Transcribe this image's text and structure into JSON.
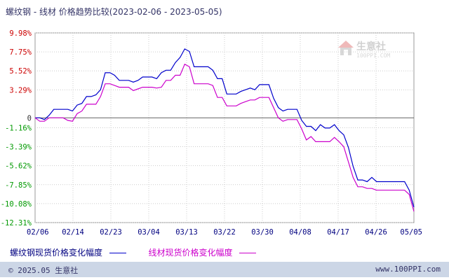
{
  "title": "螺纹钢 - 线材 价格趋势比较(2023-02-06 - 2023-05-05)",
  "watermark": {
    "name": "生意社",
    "url": "100PPI.COM"
  },
  "legend": {
    "series1": "螺纹钢现货价格变化幅度",
    "series2": "线材现货价格变化幅度"
  },
  "footer": {
    "left": "© 2025.05 生意社",
    "right": "www.100PPI.com"
  },
  "colors": {
    "series1": "#0000cc",
    "series2": "#cc00cc",
    "positive_tick": "#cc0000",
    "negative_tick": "#009900",
    "zero_line": "#666666",
    "grid": "#cccccc"
  },
  "chart_data": {
    "type": "line",
    "xticks": [
      "02/06",
      "02/14",
      "02/23",
      "03/04",
      "03/13",
      "03/22",
      "03/30",
      "04/08",
      "04/17",
      "04/26",
      "05/05"
    ],
    "yticks": [
      "9.98%",
      "7.75%",
      "5.52%",
      "3.29%",
      "0",
      "-1.16%",
      "-3.39%",
      "-5.62%",
      "-7.85%",
      "-10.08%",
      "-12.31%"
    ],
    "ylim": [
      -12.31,
      9.98
    ],
    "grid": true,
    "legend_position": "bottom",
    "series": [
      {
        "name": "螺纹钢现货价格变化幅度",
        "values": [
          0,
          0,
          -0.2,
          0.3,
          1.0,
          1.0,
          1.0,
          1.0,
          0.8,
          1.5,
          1.7,
          2.5,
          2.5,
          2.7,
          3.3,
          5.3,
          5.3,
          5.0,
          4.4,
          4.4,
          4.4,
          4.2,
          4.4,
          4.8,
          4.8,
          4.8,
          4.6,
          5.3,
          5.6,
          5.6,
          6.5,
          7.1,
          8.1,
          7.8,
          6.0,
          6.0,
          6.0,
          6.0,
          5.6,
          4.6,
          4.6,
          2.8,
          2.8,
          2.8,
          3.1,
          3.3,
          3.5,
          3.3,
          3.9,
          3.9,
          3.9,
          2.3,
          1.2,
          0.8,
          1.0,
          1.0,
          1.0,
          -0.3,
          -1.0,
          -1.0,
          -1.5,
          -0.8,
          -1.2,
          -1.2,
          -0.8,
          -1.5,
          -2.0,
          -3.5,
          -5.7,
          -7.3,
          -7.3,
          -7.5,
          -7.0,
          -7.5,
          -7.5,
          -7.5,
          -7.5,
          -7.5,
          -7.5,
          -7.5,
          -8.5,
          -10.5
        ]
      },
      {
        "name": "线材现货价格变化幅度",
        "values": [
          0,
          -0.4,
          -0.4,
          0,
          0,
          0,
          0,
          -0.3,
          -0.4,
          0.5,
          0.8,
          1.6,
          1.6,
          1.6,
          2.5,
          4.0,
          4.0,
          3.8,
          3.6,
          3.6,
          3.6,
          3.2,
          3.4,
          3.6,
          3.6,
          3.6,
          3.5,
          3.6,
          4.4,
          4.4,
          5.0,
          5.0,
          6.3,
          6.0,
          4.0,
          4.0,
          4.0,
          4.0,
          3.8,
          2.4,
          2.4,
          1.4,
          1.4,
          1.4,
          1.7,
          1.9,
          2.1,
          2.1,
          2.4,
          2.4,
          2.4,
          1.2,
          0,
          -0.4,
          -0.2,
          -0.2,
          -0.2,
          -1.3,
          -2.6,
          -2.2,
          -2.8,
          -2.8,
          -2.8,
          -2.8,
          -2.3,
          -2.8,
          -3.4,
          -5.2,
          -7.0,
          -8.1,
          -8.1,
          -8.3,
          -8.3,
          -8.5,
          -8.5,
          -8.5,
          -8.5,
          -8.5,
          -8.5,
          -8.5,
          -9.0,
          -11.0
        ]
      }
    ]
  }
}
